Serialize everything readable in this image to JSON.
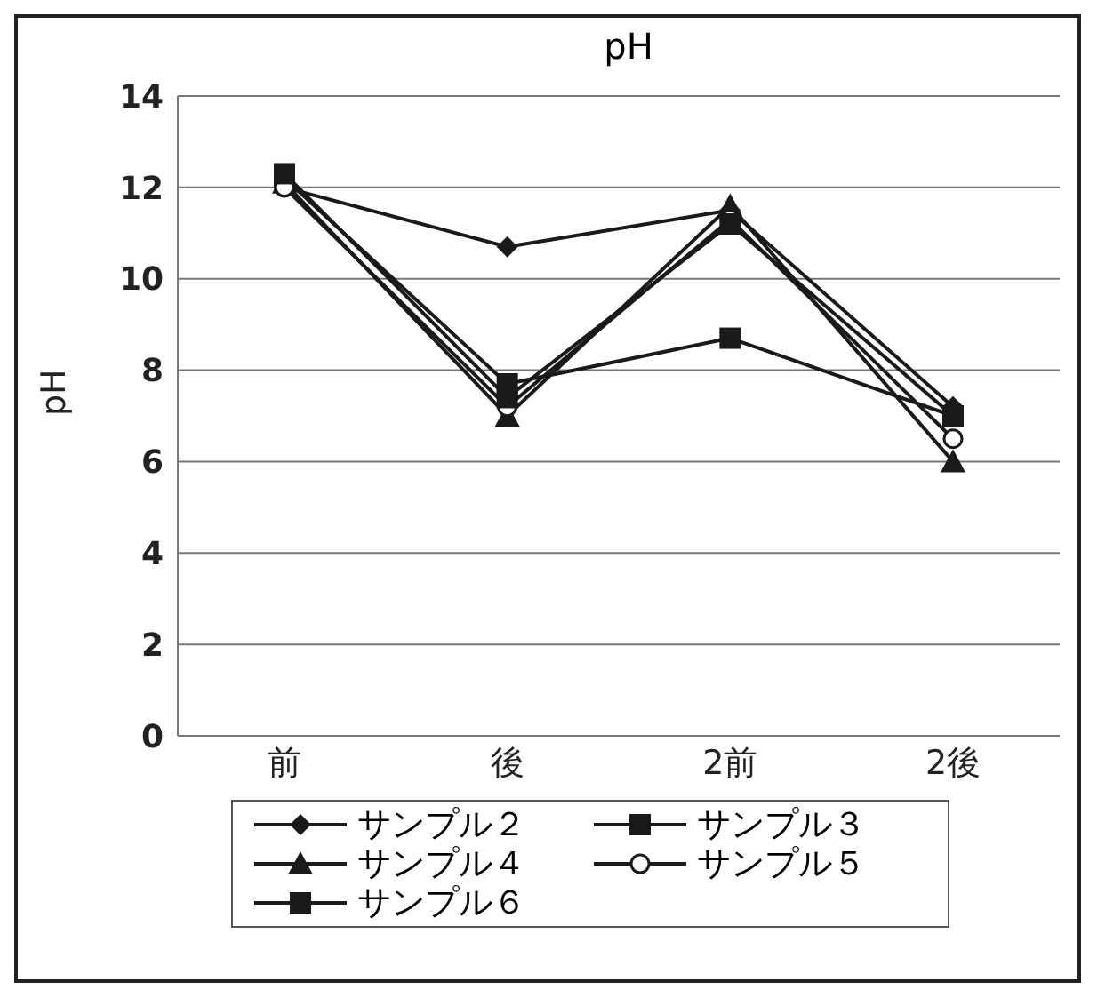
{
  "chart_data": {
    "type": "line",
    "title": "pH",
    "ylabel": "pH",
    "categories": [
      "前",
      "後",
      "2前",
      "2後"
    ],
    "series": [
      {
        "name": "サンプル２",
        "color": "#1a1a1a",
        "marker": "diamond",
        "values": [
          12.0,
          10.7,
          11.5,
          7.2
        ]
      },
      {
        "name": "サンプル３",
        "color": "#1a1a1a",
        "marker": "square",
        "values": [
          12.2,
          7.7,
          8.7,
          7.0
        ]
      },
      {
        "name": "サンプル４",
        "color": "#1a1a1a",
        "marker": "triangle",
        "values": [
          12.1,
          7.0,
          11.6,
          6.0
        ]
      },
      {
        "name": "サンプル５",
        "color": "#1a1a1a",
        "marker": "circle",
        "values": [
          12.0,
          7.2,
          11.3,
          6.5
        ]
      },
      {
        "name": "サンプル６",
        "color": "#1a1a1a",
        "marker": "square",
        "values": [
          12.3,
          7.4,
          11.2,
          7.0
        ]
      }
    ],
    "ylim": [
      0,
      14
    ],
    "yticks": [
      0,
      2,
      4,
      6,
      8,
      10,
      12,
      14
    ],
    "grid": "y",
    "legend": "bottom"
  }
}
